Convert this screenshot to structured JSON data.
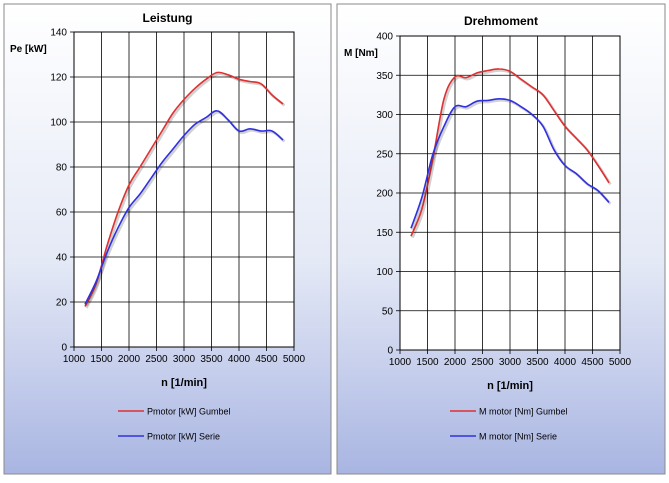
{
  "charts": [
    {
      "id": "leistung",
      "title": "Leistung",
      "xlabel": "n [1/min]",
      "ylabel": "Pe [kW]",
      "xlim": [
        1000,
        5000
      ],
      "ylim": [
        0,
        140
      ],
      "xticks": [
        1000,
        1500,
        2000,
        2500,
        3000,
        3500,
        4000,
        4500,
        5000
      ],
      "yticks": [
        0,
        20,
        40,
        60,
        80,
        100,
        120,
        140
      ]
    },
    {
      "id": "drehmoment",
      "title": "Drehmoment",
      "xlabel": "n [1/min]",
      "ylabel": "M [Nm]",
      "xlim": [
        1000,
        5000
      ],
      "ylim": [
        0,
        400
      ],
      "xticks": [
        1000,
        1500,
        2000,
        2500,
        3000,
        3500,
        4000,
        4500,
        5000
      ],
      "yticks": [
        0,
        50,
        100,
        150,
        200,
        250,
        300,
        350,
        400
      ]
    }
  ],
  "chart_data": [
    {
      "type": "line",
      "title": "Leistung",
      "xlabel": "n [1/min]",
      "ylabel": "Pe [kW]",
      "xlim": [
        1000,
        5000
      ],
      "ylim": [
        0,
        140
      ],
      "grid": true,
      "legend": "bottom",
      "series": [
        {
          "name": "Pmotor [kW] Gumbel",
          "color": "#e03030",
          "x": [
            1200,
            1400,
            1600,
            1800,
            2000,
            2200,
            2400,
            2600,
            2800,
            3000,
            3200,
            3400,
            3600,
            3800,
            4000,
            4200,
            4400,
            4600,
            4800
          ],
          "y": [
            18,
            28,
            45,
            60,
            72,
            80,
            88,
            96,
            104,
            110,
            115,
            119,
            122,
            121,
            119,
            118,
            117,
            112,
            108
          ]
        },
        {
          "name": "Pmotor [kW] Serie",
          "color": "#3030e0",
          "x": [
            1200,
            1400,
            1600,
            1800,
            2000,
            2200,
            2400,
            2600,
            2800,
            3000,
            3200,
            3400,
            3600,
            3800,
            4000,
            4200,
            4400,
            4600,
            4800
          ],
          "y": [
            19,
            29,
            42,
            53,
            62,
            68,
            75,
            82,
            88,
            94,
            99,
            102,
            105,
            101,
            96,
            97,
            96,
            96,
            92
          ]
        }
      ]
    },
    {
      "type": "line",
      "title": "Drehmoment",
      "xlabel": "n [1/min]",
      "ylabel": "M [Nm]",
      "xlim": [
        1000,
        5000
      ],
      "ylim": [
        0,
        400
      ],
      "grid": true,
      "legend": "bottom",
      "series": [
        {
          "name": "M motor [Nm] Gumbel",
          "color": "#e03030",
          "x": [
            1200,
            1400,
            1600,
            1800,
            2000,
            2200,
            2400,
            2600,
            2800,
            3000,
            3200,
            3400,
            3600,
            3800,
            4000,
            4200,
            4400,
            4600,
            4800
          ],
          "y": [
            145,
            180,
            245,
            320,
            348,
            347,
            353,
            356,
            358,
            355,
            345,
            335,
            325,
            305,
            285,
            270,
            255,
            235,
            213
          ]
        },
        {
          "name": "M motor [Nm] Serie",
          "color": "#3030e0",
          "x": [
            1200,
            1400,
            1600,
            1800,
            2000,
            2200,
            2400,
            2600,
            2800,
            3000,
            3200,
            3400,
            3600,
            3800,
            4000,
            4200,
            4400,
            4600,
            4800
          ],
          "y": [
            155,
            195,
            250,
            285,
            310,
            310,
            317,
            318,
            320,
            318,
            310,
            300,
            285,
            255,
            235,
            225,
            212,
            203,
            188
          ]
        }
      ]
    }
  ]
}
